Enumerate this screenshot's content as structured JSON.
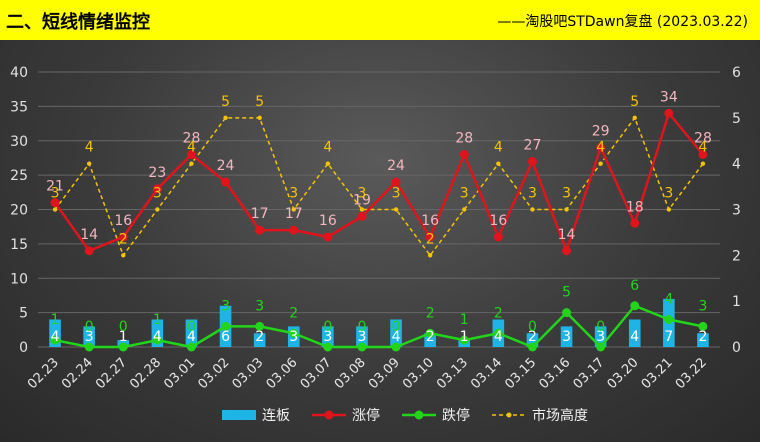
{
  "header": {
    "title": "二、短线情绪监控",
    "credit": "——淘股吧STDawn复盘 (2023.03.22)"
  },
  "chart_data": {
    "type": "bar",
    "categories": [
      "02.23",
      "02.24",
      "02.27",
      "02.28",
      "03.01",
      "03.02",
      "03.03",
      "03.06",
      "03.07",
      "03.08",
      "03.09",
      "03.10",
      "03.13",
      "03.14",
      "03.15",
      "03.16",
      "03.17",
      "03.20",
      "03.21",
      "03.22"
    ],
    "series": [
      {
        "name": "连板",
        "type": "bar",
        "axis": "left",
        "color": "#1fb4e6",
        "values": [
          4,
          3,
          1,
          4,
          4,
          6,
          2,
          3,
          3,
          3,
          4,
          2,
          1,
          4,
          2,
          3,
          3,
          4,
          7,
          2
        ]
      },
      {
        "name": "涨停",
        "type": "line",
        "axis": "left",
        "color": "#e0141c",
        "values": [
          21,
          14,
          16,
          23,
          28,
          24,
          17,
          17,
          16,
          19,
          24,
          16,
          28,
          16,
          27,
          14,
          29,
          18,
          34,
          28
        ]
      },
      {
        "name": "跌停",
        "type": "line",
        "axis": "left",
        "color": "#22d41a",
        "values": [
          1,
          0,
          0,
          1,
          0,
          3,
          3,
          2,
          0,
          0,
          0,
          2,
          1,
          2,
          0,
          5,
          0,
          6,
          4,
          3
        ]
      },
      {
        "name": "市场高度",
        "type": "dashed-line",
        "axis": "right",
        "color": "#f5c400",
        "values": [
          3,
          4,
          2,
          3,
          4,
          5,
          5,
          3,
          4,
          3,
          3,
          2,
          3,
          4,
          3,
          3,
          4,
          5,
          3,
          4
        ]
      }
    ],
    "y_left": {
      "lim": [
        0,
        40
      ],
      "ticks": [
        "0",
        "5",
        "10",
        "15",
        "20",
        "25",
        "30",
        "35",
        "40"
      ]
    },
    "y_right": {
      "lim": [
        0,
        6
      ],
      "ticks": [
        "0",
        "1",
        "2",
        "3",
        "4",
        "5",
        "6"
      ]
    },
    "grid": true,
    "legend_position": "bottom"
  }
}
